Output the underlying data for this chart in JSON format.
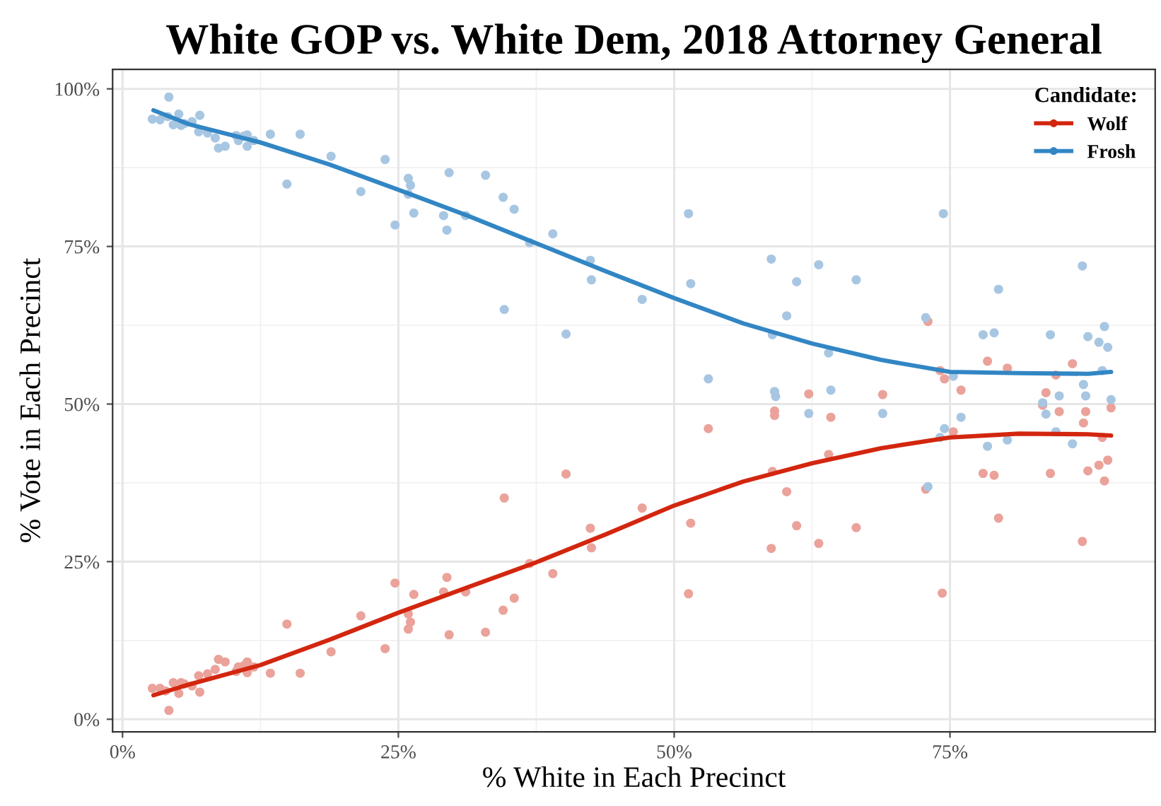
{
  "chart_data": {
    "type": "scatter",
    "title": "White GOP vs. White Dem, 2018 Attorney General",
    "xlabel": "% White in Each Precinct",
    "ylabel": "% Vote in Each Precinct",
    "legend_title": "Candidate:",
    "legend": "top right",
    "grid": true,
    "marker": "circle",
    "xlim": [
      -0.9,
      93.6
    ],
    "ylim": [
      -2.0,
      103.1
    ],
    "xticks": [
      {
        "value": 0,
        "label": "0%"
      },
      {
        "value": 25,
        "label": "25%"
      },
      {
        "value": 50,
        "label": "50%"
      },
      {
        "value": 75,
        "label": "75%"
      }
    ],
    "yticks": [
      {
        "value": 0,
        "label": "0%"
      },
      {
        "value": 25,
        "label": "25%"
      },
      {
        "value": 50,
        "label": "50%"
      },
      {
        "value": 75,
        "label": "75%"
      },
      {
        "value": 100,
        "label": "100%"
      }
    ],
    "series": [
      {
        "color": "#eaa29a",
        "x": [
          2.7,
          3.4,
          4.2,
          3.9,
          4.6,
          5.1,
          5.3,
          5.6,
          6.3,
          6.9,
          7.0,
          7.7,
          8.4,
          8.7,
          9.3,
          10.3,
          10.5,
          11.0,
          11.3,
          11.3,
          11.9,
          13.4,
          16.1,
          14.9,
          18.9,
          21.6,
          23.8,
          24.7,
          25.9,
          26.1,
          25.9,
          26.4,
          29.1,
          29.4,
          29.6,
          31.1,
          32.9,
          34.5,
          34.6,
          35.5,
          36.9,
          39.0,
          40.2,
          42.4,
          42.5,
          47.1,
          51.3,
          51.5,
          53.1,
          58.8,
          60.2,
          61.1,
          63.1,
          58.9,
          59.1,
          59.1,
          62.2,
          64.2,
          64.0,
          66.5,
          68.9,
          73.0,
          72.8,
          74.1,
          74.5,
          75.3,
          76.0,
          74.3,
          79.4,
          78.0,
          79.0,
          78.4,
          80.2,
          84.1,
          83.4,
          83.7,
          84.9,
          84.6,
          86.1,
          87.0,
          87.5,
          88.5,
          89.0,
          89.3,
          87.1,
          87.3,
          88.8,
          89.6
        ],
        "values": [
          4.9,
          4.9,
          1.4,
          4.5,
          5.8,
          4.1,
          5.8,
          5.6,
          5.3,
          6.9,
          4.3,
          7.2,
          7.9,
          9.5,
          9.1,
          7.6,
          8.3,
          8.5,
          9.1,
          7.4,
          8.3,
          7.3,
          7.3,
          15.1,
          10.7,
          16.4,
          11.2,
          21.6,
          16.7,
          15.4,
          14.3,
          19.8,
          20.2,
          22.5,
          13.4,
          20.2,
          13.8,
          17.3,
          35.1,
          19.2,
          24.7,
          23.1,
          38.9,
          30.3,
          27.2,
          33.5,
          19.9,
          31.1,
          46.1,
          27.1,
          36.1,
          30.7,
          27.9,
          39.3,
          48.9,
          48.2,
          51.6,
          47.9,
          42.0,
          30.4,
          51.5,
          63.1,
          36.5,
          55.3,
          54.0,
          45.6,
          52.2,
          20.0,
          31.9,
          39.0,
          38.7,
          56.8,
          55.7,
          39.0,
          49.8,
          51.8,
          48.8,
          54.6,
          56.4,
          28.2,
          39.4,
          40.3,
          37.8,
          41.1,
          47.0,
          48.8,
          44.7,
          49.4
        ]
      },
      {
        "color": "#a7c6e2",
        "x": [
          2.7,
          3.4,
          4.2,
          4.1,
          5.1,
          4.6,
          5.3,
          5.6,
          6.3,
          7.0,
          6.9,
          7.7,
          8.4,
          8.7,
          9.3,
          10.3,
          10.5,
          11.0,
          11.3,
          11.3,
          11.9,
          13.4,
          16.1,
          14.9,
          18.9,
          21.6,
          23.8,
          24.7,
          25.9,
          26.1,
          25.9,
          26.4,
          29.1,
          29.6,
          29.4,
          31.1,
          32.9,
          34.5,
          34.6,
          35.5,
          36.9,
          39.0,
          42.4,
          42.5,
          40.2,
          47.1,
          51.3,
          51.5,
          53.1,
          58.8,
          61.1,
          60.2,
          58.9,
          59.1,
          59.2,
          62.2,
          63.1,
          64.0,
          64.2,
          66.5,
          68.9,
          74.4,
          72.8,
          75.3,
          76.0,
          74.5,
          74.1,
          73.0,
          79.4,
          78.0,
          79.0,
          78.4,
          80.2,
          84.1,
          83.4,
          83.7,
          84.9,
          84.6,
          86.1,
          87.0,
          87.5,
          88.5,
          89.0,
          89.3,
          87.1,
          87.3,
          88.8,
          89.6
        ],
        "values": [
          95.2,
          95.1,
          98.7,
          95.6,
          96.0,
          94.3,
          94.2,
          94.5,
          94.8,
          95.8,
          93.2,
          93.0,
          92.2,
          90.6,
          90.9,
          92.6,
          91.8,
          92.5,
          92.7,
          90.9,
          91.8,
          92.8,
          92.8,
          84.9,
          89.3,
          83.7,
          88.8,
          78.4,
          85.8,
          84.7,
          83.3,
          80.3,
          79.9,
          86.7,
          77.6,
          79.9,
          86.3,
          82.8,
          65.0,
          80.9,
          75.6,
          77.0,
          72.8,
          69.7,
          61.1,
          66.6,
          80.2,
          69.1,
          54.0,
          73.0,
          69.4,
          64.0,
          61.0,
          52.0,
          51.2,
          48.5,
          72.1,
          58.1,
          52.2,
          69.7,
          48.5,
          80.2,
          63.7,
          54.4,
          47.9,
          46.1,
          44.7,
          36.9,
          68.2,
          61.0,
          61.3,
          43.3,
          44.3,
          61.0,
          50.2,
          48.4,
          51.3,
          45.6,
          43.7,
          71.9,
          60.7,
          59.8,
          62.3,
          59.0,
          53.1,
          51.3,
          55.3,
          50.7
        ]
      },
      {
        "type": "line",
        "marker": "none",
        "name": "Wolf",
        "color": "#d3260f",
        "x": [
          2.8,
          6,
          12.5,
          18.75,
          25,
          31.25,
          37.5,
          43.75,
          50,
          56.25,
          62.5,
          68.75,
          75,
          81.25,
          87.5,
          89.6
        ],
        "values": [
          3.8,
          5.5,
          8.6,
          12.6,
          16.9,
          20.9,
          24.9,
          29.3,
          33.9,
          37.7,
          40.6,
          43.0,
          44.7,
          45.3,
          45.2,
          45.0
        ]
      },
      {
        "type": "line",
        "marker": "none",
        "name": "Frosh",
        "color": "#3286c4",
        "x": [
          2.8,
          6,
          12.5,
          18.75,
          25,
          31.25,
          37.5,
          43.75,
          50,
          56.25,
          62.5,
          68.75,
          75,
          81.25,
          87.5,
          89.6
        ],
        "values": [
          96.6,
          94.4,
          91.5,
          88.0,
          84.0,
          79.9,
          75.5,
          71.1,
          66.8,
          62.8,
          59.6,
          57.0,
          55.1,
          54.9,
          54.8,
          55.1
        ]
      }
    ]
  }
}
